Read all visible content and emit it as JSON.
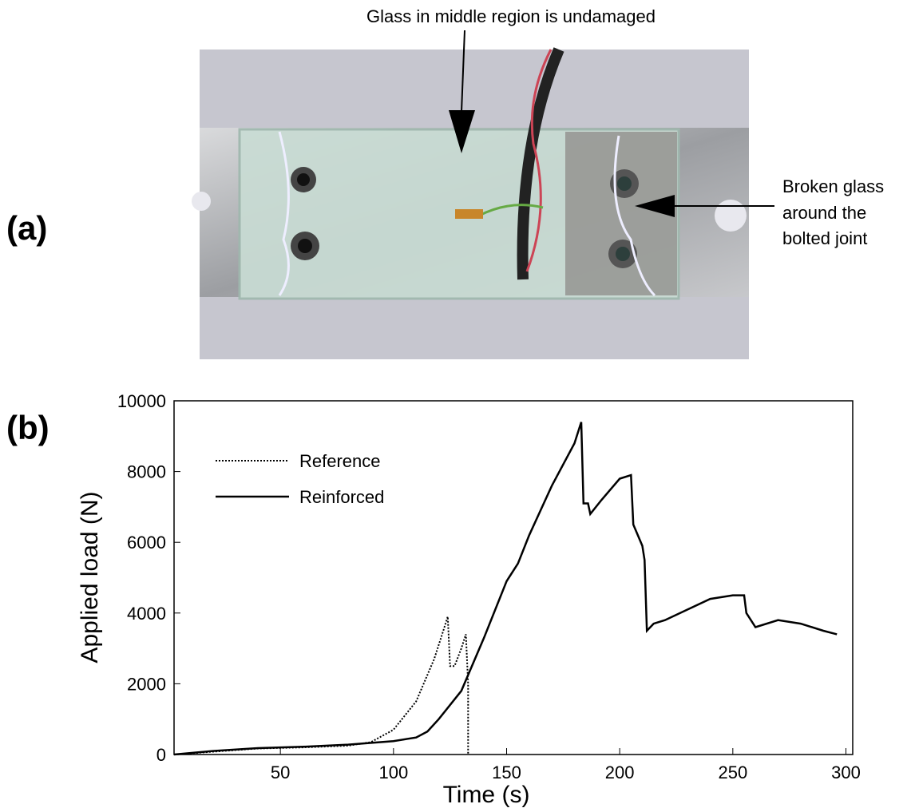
{
  "panel_labels": [
    "(a)",
    "(b)"
  ],
  "photo": {
    "top_annotation": "Glass in middle region is undamaged",
    "side_annotation": [
      "Broken glass",
      "around the",
      "bolted joint"
    ]
  },
  "chart_data": {
    "type": "line",
    "xlabel": "Time (s)",
    "ylabel": "Applied load (N)",
    "xlim": [
      3,
      303
    ],
    "ylim": [
      0,
      10000
    ],
    "xticks": [
      50,
      100,
      150,
      200,
      250,
      300
    ],
    "yticks": [
      0,
      2000,
      4000,
      6000,
      8000,
      10000
    ],
    "grid": false,
    "legend": "upper left",
    "series": [
      {
        "name": "Reference",
        "color": "#000000",
        "style": "dotted",
        "x": [
          3,
          20,
          40,
          60,
          80,
          90,
          100,
          110,
          118,
          122,
          124,
          125,
          127,
          130,
          132,
          133,
          133
        ],
        "values": [
          0,
          80,
          170,
          200,
          250,
          350,
          700,
          1500,
          2700,
          3500,
          3900,
          2500,
          2500,
          3000,
          3400,
          2000,
          0
        ]
      },
      {
        "name": "Reinforced",
        "color": "#000000",
        "style": "solid",
        "x": [
          3,
          20,
          40,
          60,
          80,
          100,
          110,
          115,
          120,
          130,
          140,
          150,
          155,
          160,
          170,
          180,
          183,
          184,
          186,
          187,
          192,
          196,
          200,
          205,
          206,
          210,
          211,
          212,
          215,
          220,
          230,
          240,
          250,
          255,
          256,
          260,
          270,
          280,
          290,
          296
        ],
        "values": [
          0,
          100,
          180,
          220,
          280,
          380,
          480,
          650,
          1000,
          1800,
          3300,
          4900,
          5400,
          6200,
          7600,
          8800,
          9400,
          7100,
          7100,
          6800,
          7200,
          7500,
          7800,
          7900,
          6500,
          5900,
          5500,
          3500,
          3700,
          3800,
          4100,
          4400,
          4500,
          4500,
          4000,
          3600,
          3800,
          3700,
          3500,
          3400
        ]
      }
    ]
  }
}
